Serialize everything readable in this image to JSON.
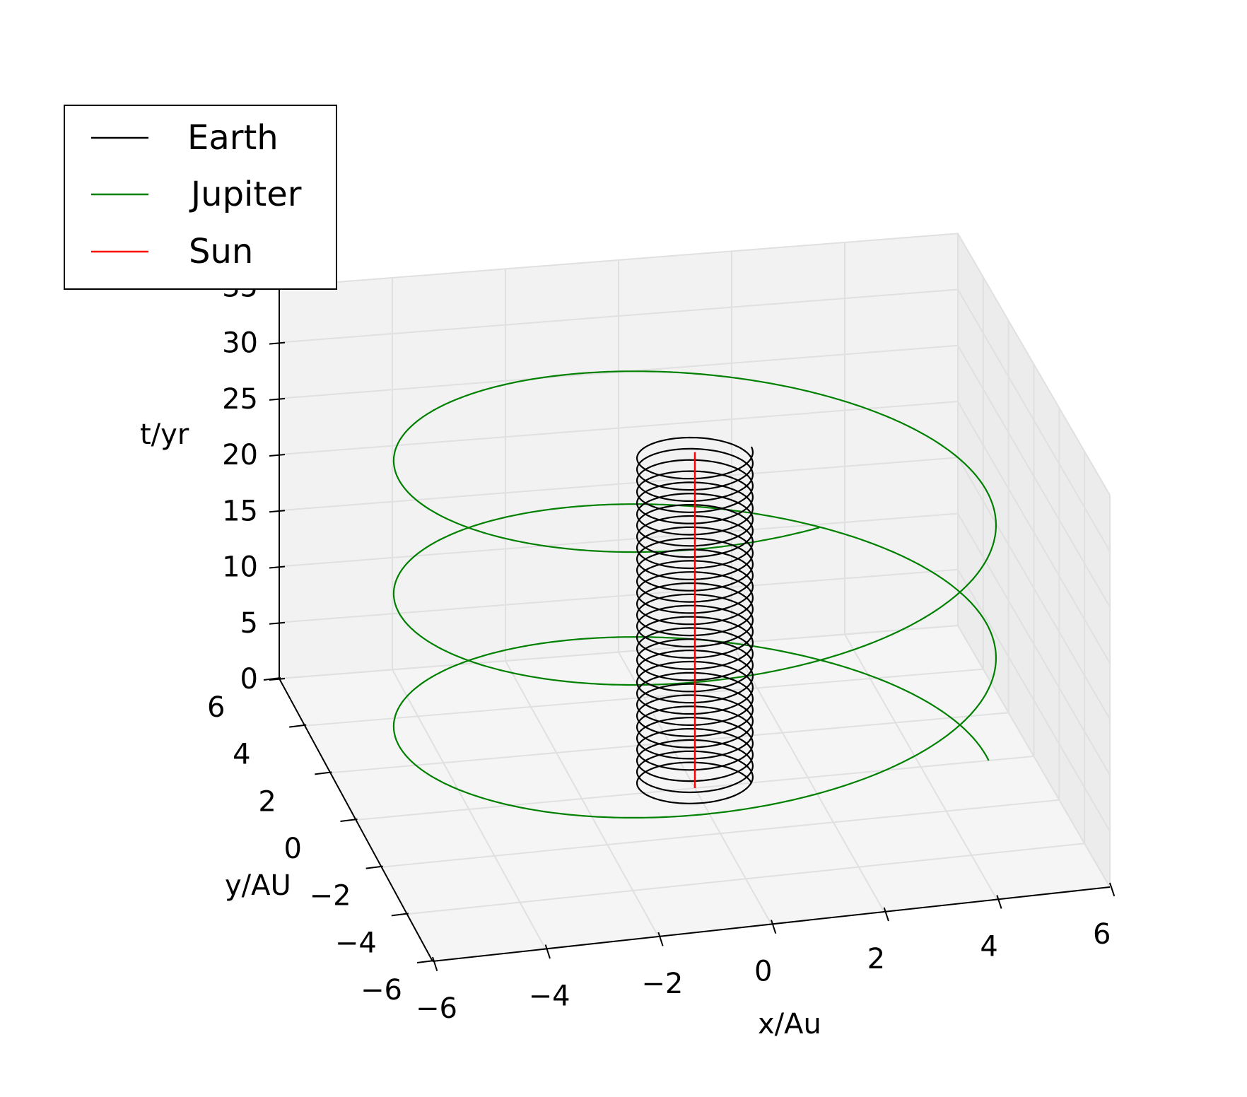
{
  "chart_data": {
    "type": "line",
    "projection": "3d",
    "xlabel": "x/Au",
    "ylabel": "y/AU",
    "zlabel": "t/yr",
    "xlim": [
      -6,
      6
    ],
    "ylim": [
      -6,
      6
    ],
    "zlim": [
      0,
      35
    ],
    "xticks": [
      -6,
      -4,
      -2,
      0,
      2,
      4,
      6
    ],
    "yticks": [
      -6,
      -4,
      -2,
      0,
      2,
      4,
      6
    ],
    "zticks": [
      0,
      5,
      10,
      15,
      20,
      25,
      30,
      35
    ],
    "xtick_labels": [
      "−6",
      "−4",
      "−2",
      "0",
      "2",
      "4",
      "6"
    ],
    "ytick_labels": [
      "−6",
      "−4",
      "−2",
      "0",
      "2",
      "4",
      "6"
    ],
    "ztick_labels": [
      "0",
      "5",
      "10",
      "15",
      "20",
      "25",
      "30",
      "35"
    ],
    "grid": true,
    "legend_position": "top-left",
    "series": [
      {
        "name": "Earth",
        "color": "#000000",
        "orbit_radius_au": 1.0,
        "period_yr": 1.0,
        "t_start": 0,
        "t_end": 30
      },
      {
        "name": "Jupiter",
        "color": "#008000",
        "orbit_radius_au": 5.2,
        "period_yr": 11.86,
        "t_start": 0,
        "t_end": 33
      },
      {
        "name": "Sun",
        "color": "#ff0000",
        "orbit_radius_au": 0.0,
        "period_yr": null,
        "t_start": 0,
        "t_end": 30
      }
    ]
  }
}
